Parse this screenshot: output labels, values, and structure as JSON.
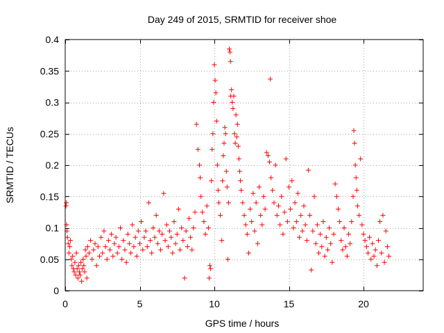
{
  "chart_data": {
    "type": "scatter",
    "title": "Day 249 of 2015, SRMTID for receiver shoe",
    "xlabel": "GPS time / hours",
    "ylabel": "SRMTID / TECUs",
    "xlim": [
      0,
      24
    ],
    "ylim": [
      0,
      0.4
    ],
    "xticks": [
      0,
      5,
      10,
      15,
      20
    ],
    "xtick_labels": [
      "0",
      "5",
      "10",
      "15",
      "20"
    ],
    "yticks": [
      0,
      0.05,
      0.1,
      0.15,
      0.2,
      0.25,
      0.3,
      0.35,
      0.4
    ],
    "ytick_labels": [
      "0",
      "0.05",
      "0.1",
      "0.15",
      "0.2",
      "0.25",
      "0.3",
      "0.35",
      "0.4"
    ],
    "grid": true,
    "marker": "+",
    "color": "#ff0000",
    "series": [
      {
        "name": "SRMTID",
        "points": [
          [
            0.05,
            0.135
          ],
          [
            0.08,
            0.14
          ],
          [
            0.1,
            0.105
          ],
          [
            0.12,
            0.095
          ],
          [
            0.15,
            0.085
          ],
          [
            0.2,
            0.075
          ],
          [
            0.25,
            0.06
          ],
          [
            0.3,
            0.07
          ],
          [
            0.35,
            0.08
          ],
          [
            0.4,
            0.05
          ],
          [
            0.45,
            0.04
          ],
          [
            0.5,
            0.055
          ],
          [
            0.55,
            0.035
          ],
          [
            0.6,
            0.03
          ],
          [
            0.65,
            0.045
          ],
          [
            0.7,
            0.025
          ],
          [
            0.75,
            0.06
          ],
          [
            0.8,
            0.035
          ],
          [
            0.85,
            0.02
          ],
          [
            0.9,
            0.04
          ],
          [
            0.95,
            0.03
          ],
          [
            1.0,
            0.025
          ],
          [
            1.05,
            0.045
          ],
          [
            1.1,
            0.015
          ],
          [
            1.15,
            0.035
          ],
          [
            1.2,
            0.05
          ],
          [
            1.25,
            0.04
          ],
          [
            1.3,
            0.03
          ],
          [
            1.35,
            0.065
          ],
          [
            1.4,
            0.055
          ],
          [
            1.45,
            0.02
          ],
          [
            1.5,
            0.07
          ],
          [
            1.6,
            0.06
          ],
          [
            1.7,
            0.08
          ],
          [
            1.8,
            0.05
          ],
          [
            1.9,
            0.065
          ],
          [
            2.0,
            0.075
          ],
          [
            2.1,
            0.04
          ],
          [
            2.2,
            0.07
          ],
          [
            2.3,
            0.055
          ],
          [
            2.4,
            0.085
          ],
          [
            2.5,
            0.06
          ],
          [
            2.6,
            0.095
          ],
          [
            2.7,
            0.07
          ],
          [
            2.8,
            0.05
          ],
          [
            2.9,
            0.08
          ],
          [
            3.0,
            0.065
          ],
          [
            3.1,
            0.09
          ],
          [
            3.2,
            0.055
          ],
          [
            3.3,
            0.075
          ],
          [
            3.4,
            0.085
          ],
          [
            3.5,
            0.06
          ],
          [
            3.6,
            0.07
          ],
          [
            3.7,
            0.1
          ],
          [
            3.8,
            0.05
          ],
          [
            3.9,
            0.08
          ],
          [
            4.0,
            0.065
          ],
          [
            4.1,
            0.045
          ],
          [
            4.2,
            0.09
          ],
          [
            4.3,
            0.075
          ],
          [
            4.4,
            0.06
          ],
          [
            4.5,
            0.105
          ],
          [
            4.6,
            0.07
          ],
          [
            4.7,
            0.085
          ],
          [
            4.8,
            0.055
          ],
          [
            4.9,
            0.095
          ],
          [
            5.0,
            0.075
          ],
          [
            5.1,
            0.11
          ],
          [
            5.2,
            0.065
          ],
          [
            5.3,
            0.085
          ],
          [
            5.4,
            0.095
          ],
          [
            5.5,
            0.07
          ],
          [
            5.6,
            0.14
          ],
          [
            5.7,
            0.08
          ],
          [
            5.8,
            0.06
          ],
          [
            5.9,
            0.1
          ],
          [
            6.0,
            0.085
          ],
          [
            6.1,
            0.12
          ],
          [
            6.2,
            0.075
          ],
          [
            6.3,
            0.095
          ],
          [
            6.4,
            0.065
          ],
          [
            6.5,
            0.09
          ],
          [
            6.6,
            0.155
          ],
          [
            6.7,
            0.08
          ],
          [
            6.8,
            0.105
          ],
          [
            6.9,
            0.07
          ],
          [
            7.0,
            0.095
          ],
          [
            7.1,
            0.085
          ],
          [
            7.2,
            0.06
          ],
          [
            7.3,
            0.11
          ],
          [
            7.4,
            0.075
          ],
          [
            7.5,
            0.09
          ],
          [
            7.6,
            0.13
          ],
          [
            7.7,
            0.065
          ],
          [
            7.8,
            0.1
          ],
          [
            7.9,
            0.08
          ],
          [
            8.0,
            0.02
          ],
          [
            8.1,
            0.095
          ],
          [
            8.2,
            0.07
          ],
          [
            8.3,
            0.115
          ],
          [
            8.4,
            0.085
          ],
          [
            8.5,
            0.065
          ],
          [
            8.6,
            0.1
          ],
          [
            8.7,
            0.125
          ],
          [
            8.8,
            0.265
          ],
          [
            8.9,
            0.225
          ],
          [
            9.0,
            0.2
          ],
          [
            9.05,
            0.18
          ],
          [
            9.1,
            0.15
          ],
          [
            9.2,
            0.125
          ],
          [
            9.3,
            0.11
          ],
          [
            9.4,
            0.09
          ],
          [
            9.5,
            0.135
          ],
          [
            9.6,
            0.1
          ],
          [
            9.65,
            0.02
          ],
          [
            9.7,
            0.04
          ],
          [
            9.75,
            0.035
          ],
          [
            9.8,
            0.175
          ],
          [
            9.85,
            0.225
          ],
          [
            9.9,
            0.25
          ],
          [
            9.95,
            0.3
          ],
          [
            10.0,
            0.36
          ],
          [
            10.05,
            0.335
          ],
          [
            10.1,
            0.315
          ],
          [
            10.15,
            0.27
          ],
          [
            10.2,
            0.2
          ],
          [
            10.25,
            0.16
          ],
          [
            10.3,
            0.14
          ],
          [
            10.4,
            0.12
          ],
          [
            10.5,
            0.08
          ],
          [
            10.55,
            0.175
          ],
          [
            10.6,
            0.215
          ],
          [
            10.65,
            0.235
          ],
          [
            10.7,
            0.26
          ],
          [
            10.75,
            0.25
          ],
          [
            10.8,
            0.19
          ],
          [
            10.85,
            0.165
          ],
          [
            10.9,
            0.05
          ],
          [
            10.95,
            0.14
          ],
          [
            11.0,
            0.385
          ],
          [
            11.05,
            0.38
          ],
          [
            11.08,
            0.365
          ],
          [
            11.1,
            0.31
          ],
          [
            11.15,
            0.32
          ],
          [
            11.2,
            0.3
          ],
          [
            11.25,
            0.29
          ],
          [
            11.3,
            0.31
          ],
          [
            11.35,
            0.25
          ],
          [
            11.4,
            0.235
          ],
          [
            11.45,
            0.28
          ],
          [
            11.5,
            0.245
          ],
          [
            11.55,
            0.265
          ],
          [
            11.6,
            0.23
          ],
          [
            11.65,
            0.21
          ],
          [
            11.7,
            0.19
          ],
          [
            11.75,
            0.175
          ],
          [
            11.8,
            0.16
          ],
          [
            11.9,
            0.14
          ],
          [
            12.0,
            0.12
          ],
          [
            12.1,
            0.105
          ],
          [
            12.2,
            0.09
          ],
          [
            12.3,
            0.06
          ],
          [
            12.4,
            0.13
          ],
          [
            12.5,
            0.11
          ],
          [
            12.6,
            0.155
          ],
          [
            12.7,
            0.095
          ],
          [
            12.8,
            0.14
          ],
          [
            12.9,
            0.075
          ],
          [
            13.0,
            0.165
          ],
          [
            13.1,
            0.12
          ],
          [
            13.2,
            0.105
          ],
          [
            13.3,
            0.15
          ],
          [
            13.4,
            0.13
          ],
          [
            13.5,
            0.22
          ],
          [
            13.6,
            0.215
          ],
          [
            13.7,
            0.205
          ],
          [
            13.75,
            0.337
          ],
          [
            13.8,
            0.18
          ],
          [
            13.9,
            0.16
          ],
          [
            14.0,
            0.14
          ],
          [
            14.1,
            0.2
          ],
          [
            14.2,
            0.12
          ],
          [
            14.3,
            0.135
          ],
          [
            14.4,
            0.105
          ],
          [
            14.5,
            0.15
          ],
          [
            14.6,
            0.09
          ],
          [
            14.7,
            0.125
          ],
          [
            14.8,
            0.21
          ],
          [
            14.9,
            0.11
          ],
          [
            15.0,
            0.165
          ],
          [
            15.1,
            0.13
          ],
          [
            15.2,
            0.175
          ],
          [
            15.3,
            0.1
          ],
          [
            15.4,
            0.14
          ],
          [
            15.5,
            0.11
          ],
          [
            15.6,
            0.155
          ],
          [
            15.7,
            0.085
          ],
          [
            15.8,
            0.12
          ],
          [
            15.9,
            0.095
          ],
          [
            16.0,
            0.135
          ],
          [
            16.1,
            0.105
          ],
          [
            16.2,
            0.08
          ],
          [
            16.3,
            0.192
          ],
          [
            16.4,
            0.12
          ],
          [
            16.5,
            0.033
          ],
          [
            16.6,
            0.095
          ],
          [
            16.7,
            0.15
          ],
          [
            16.8,
            0.075
          ],
          [
            16.9,
            0.105
          ],
          [
            17.0,
            0.06
          ],
          [
            17.1,
            0.09
          ],
          [
            17.2,
            0.07
          ],
          [
            17.3,
            0.11
          ],
          [
            17.4,
            0.055
          ],
          [
            17.5,
            0.085
          ],
          [
            17.6,
            0.065
          ],
          [
            17.7,
            0.1
          ],
          [
            17.8,
            0.075
          ],
          [
            17.9,
            0.045
          ],
          [
            18.0,
            0.09
          ],
          [
            18.1,
            0.17
          ],
          [
            18.2,
            0.15
          ],
          [
            18.3,
            0.13
          ],
          [
            18.4,
            0.11
          ],
          [
            18.5,
            0.08
          ],
          [
            18.6,
            0.065
          ],
          [
            18.7,
            0.1
          ],
          [
            18.8,
            0.07
          ],
          [
            18.9,
            0.055
          ],
          [
            19.0,
            0.09
          ],
          [
            19.1,
            0.075
          ],
          [
            19.2,
            0.11
          ],
          [
            19.3,
            0.15
          ],
          [
            19.35,
            0.255
          ],
          [
            19.4,
            0.235
          ],
          [
            19.45,
            0.2
          ],
          [
            19.5,
            0.18
          ],
          [
            19.55,
            0.16
          ],
          [
            19.6,
            0.135
          ],
          [
            19.7,
            0.12
          ],
          [
            19.8,
            0.21
          ],
          [
            19.9,
            0.105
          ],
          [
            20.0,
            0.09
          ],
          [
            20.1,
            0.08
          ],
          [
            20.2,
            0.07
          ],
          [
            20.3,
            0.06
          ],
          [
            20.4,
            0.085
          ],
          [
            20.5,
            0.05
          ],
          [
            20.6,
            0.075
          ],
          [
            20.7,
            0.055
          ],
          [
            20.8,
            0.065
          ],
          [
            20.9,
            0.04
          ],
          [
            21.0,
            0.08
          ],
          [
            21.1,
            0.11
          ],
          [
            21.2,
            0.06
          ],
          [
            21.3,
            0.12
          ],
          [
            21.4,
            0.045
          ],
          [
            21.5,
            0.095
          ],
          [
            21.6,
            0.07
          ],
          [
            21.7,
            0.055
          ]
        ]
      }
    ]
  }
}
